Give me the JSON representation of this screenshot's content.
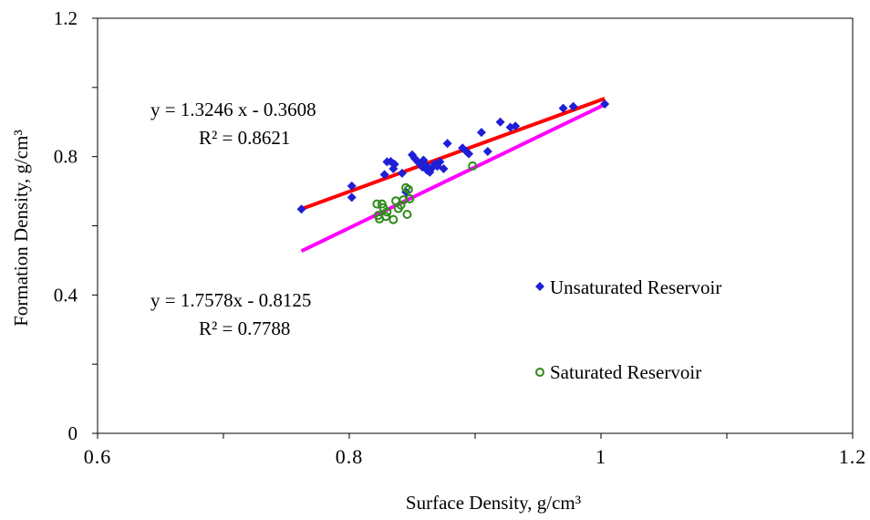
{
  "chart_data": {
    "type": "scatter",
    "xlabel": "Surface Density, g/cm³",
    "ylabel": "Formation Density, g/cm³",
    "xlim": [
      0.6,
      1.2
    ],
    "ylim": [
      0,
      1.2
    ],
    "x_ticks": [
      "0.6",
      "0.8",
      "1",
      "1.2"
    ],
    "y_ticks": [
      "0",
      "0.4",
      "0.8",
      "1.2"
    ],
    "grid": false,
    "legend_position": "right",
    "series": [
      {
        "name": "Unsaturated Reservoir",
        "marker": "diamond",
        "color": "#1f1fd6",
        "points": [
          [
            0.762,
            0.648
          ],
          [
            0.802,
            0.715
          ],
          [
            0.802,
            0.682
          ],
          [
            0.828,
            0.748
          ],
          [
            0.83,
            0.785
          ],
          [
            0.833,
            0.786
          ],
          [
            0.835,
            0.765
          ],
          [
            0.836,
            0.778
          ],
          [
            0.842,
            0.752
          ],
          [
            0.845,
            0.698
          ],
          [
            0.85,
            0.805
          ],
          [
            0.852,
            0.795
          ],
          [
            0.855,
            0.783
          ],
          [
            0.858,
            0.77
          ],
          [
            0.859,
            0.79
          ],
          [
            0.861,
            0.775
          ],
          [
            0.862,
            0.76
          ],
          [
            0.864,
            0.755
          ],
          [
            0.866,
            0.768
          ],
          [
            0.868,
            0.779
          ],
          [
            0.87,
            0.772
          ],
          [
            0.872,
            0.785
          ],
          [
            0.875,
            0.765
          ],
          [
            0.878,
            0.838
          ],
          [
            0.89,
            0.825
          ],
          [
            0.893,
            0.815
          ],
          [
            0.895,
            0.808
          ],
          [
            0.905,
            0.87
          ],
          [
            0.91,
            0.815
          ],
          [
            0.92,
            0.9
          ],
          [
            0.928,
            0.885
          ],
          [
            0.932,
            0.888
          ],
          [
            0.97,
            0.94
          ],
          [
            0.978,
            0.945
          ],
          [
            1.003,
            0.952
          ]
        ]
      },
      {
        "name": "Saturated Reservoir",
        "marker": "open-circle",
        "color": "#2e8b1a",
        "points": [
          [
            0.822,
            0.663
          ],
          [
            0.823,
            0.63
          ],
          [
            0.824,
            0.62
          ],
          [
            0.826,
            0.663
          ],
          [
            0.827,
            0.652
          ],
          [
            0.829,
            0.627
          ],
          [
            0.83,
            0.64
          ],
          [
            0.835,
            0.618
          ],
          [
            0.837,
            0.672
          ],
          [
            0.839,
            0.65
          ],
          [
            0.841,
            0.66
          ],
          [
            0.843,
            0.675
          ],
          [
            0.845,
            0.71
          ],
          [
            0.846,
            0.633
          ],
          [
            0.847,
            0.705
          ],
          [
            0.848,
            0.678
          ],
          [
            0.898,
            0.773
          ]
        ]
      }
    ],
    "trendlines": [
      {
        "series": "Unsaturated Reservoir",
        "slope": 1.3246,
        "intercept": -0.3608,
        "x_range": [
          0.762,
          1.003
        ],
        "color": "#ff0000"
      },
      {
        "series": "Saturated Reservoir",
        "slope": 1.7578,
        "intercept": -0.8125,
        "x_range": [
          0.762,
          1.003
        ],
        "color": "#ff00ff"
      }
    ],
    "annotations": [
      {
        "equation": "y = 1.3246 x - 0.3608",
        "r2": "R² = 0.8621"
      },
      {
        "equation": "y = 1.7578x - 0.8125",
        "r2": "R² = 0.7788"
      }
    ]
  }
}
